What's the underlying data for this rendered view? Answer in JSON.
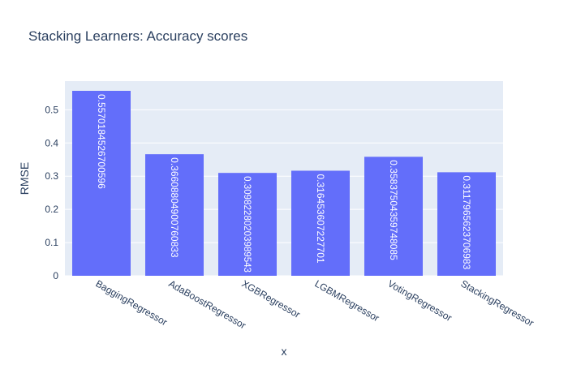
{
  "chart_data": {
    "type": "bar",
    "title": "Stacking Learners: Accuracy scores",
    "x_label": "x",
    "y_label": "RMSE",
    "categories": [
      "BaggingRegressor",
      "AdaBoostRegressor",
      "XGBRegressor",
      "LGBMRegressor",
      "VotingRegressor",
      "StackingRegressor"
    ],
    "values": [
      0.5570184526700596,
      0.36608804900760833,
      0.30982280203989543,
      0.316453607227701,
      0.35837504359748085,
      0.3117965623706983
    ],
    "value_labels": [
      "0.5570184526700596",
      "0.36608804900760833",
      "0.30982280203989543",
      "0.316453607227701",
      "0.35837504359748085",
      "0.3117965623706983"
    ],
    "color": "#636efa",
    "ylim": [
      0,
      0.5863
    ],
    "yticks": [
      0,
      0.1,
      0.2,
      0.3,
      0.4,
      0.5
    ],
    "grid": true
  }
}
